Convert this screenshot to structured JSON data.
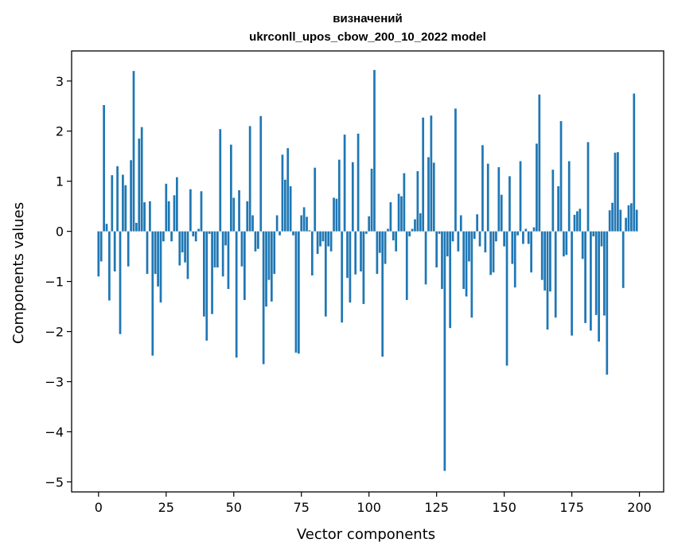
{
  "chart_data": {
    "type": "bar",
    "title_line1": "визначений",
    "title_line2": "ukrconll_upos_cbow_200_10_2022 model",
    "xlabel": "Vector components",
    "ylabel": "Components values",
    "xlim": [
      -9.95,
      208.95
    ],
    "ylim": [
      -5.2,
      3.6
    ],
    "xticks": [
      0,
      25,
      50,
      75,
      100,
      125,
      150,
      175,
      200
    ],
    "yticks": [
      -5,
      -4,
      -3,
      -2,
      -1,
      0,
      1,
      2,
      3
    ],
    "ytick_labels": [
      "−5",
      "−4",
      "−3",
      "−2",
      "−1",
      "0",
      "1",
      "2",
      "3"
    ],
    "bar_color": "#1f77b4",
    "grid": false,
    "x": [
      0,
      1,
      2,
      3,
      4,
      5,
      6,
      7,
      8,
      9,
      10,
      11,
      12,
      13,
      14,
      15,
      16,
      17,
      18,
      19,
      20,
      21,
      22,
      23,
      24,
      25,
      26,
      27,
      28,
      29,
      30,
      31,
      32,
      33,
      34,
      35,
      36,
      37,
      38,
      39,
      40,
      41,
      42,
      43,
      44,
      45,
      46,
      47,
      48,
      49,
      50,
      51,
      52,
      53,
      54,
      55,
      56,
      57,
      58,
      59,
      60,
      61,
      62,
      63,
      64,
      65,
      66,
      67,
      68,
      69,
      70,
      71,
      72,
      73,
      74,
      75,
      76,
      77,
      78,
      79,
      80,
      81,
      82,
      83,
      84,
      85,
      86,
      87,
      88,
      89,
      90,
      91,
      92,
      93,
      94,
      95,
      96,
      97,
      98,
      99,
      100,
      101,
      102,
      103,
      104,
      105,
      106,
      107,
      108,
      109,
      110,
      111,
      112,
      113,
      114,
      115,
      116,
      117,
      118,
      119,
      120,
      121,
      122,
      123,
      124,
      125,
      126,
      127,
      128,
      129,
      130,
      131,
      132,
      133,
      134,
      135,
      136,
      137,
      138,
      139,
      140,
      141,
      142,
      143,
      144,
      145,
      146,
      147,
      148,
      149,
      150,
      151,
      152,
      153,
      154,
      155,
      156,
      157,
      158,
      159,
      160,
      161,
      162,
      163,
      164,
      165,
      166,
      167,
      168,
      169,
      170,
      171,
      172,
      173,
      174,
      175,
      176,
      177,
      178,
      179,
      180,
      181,
      182,
      183,
      184,
      185,
      186,
      187,
      188,
      189,
      190,
      191,
      192,
      193,
      194,
      195,
      196,
      197,
      198,
      199
    ],
    "values": [
      -0.9,
      -0.6,
      2.52,
      0.15,
      -1.38,
      1.12,
      -0.8,
      1.3,
      -2.05,
      1.13,
      0.92,
      -0.7,
      1.42,
      3.2,
      0.17,
      1.85,
      2.08,
      0.58,
      -0.85,
      0.6,
      -2.48,
      -0.85,
      -1.1,
      -1.42,
      -0.2,
      0.95,
      0.6,
      -0.2,
      0.72,
      1.08,
      -0.68,
      -0.42,
      -0.62,
      -0.95,
      0.84,
      -0.1,
      -0.2,
      0.05,
      0.8,
      -1.7,
      -2.18,
      -0.05,
      -1.65,
      -0.72,
      -0.72,
      2.04,
      -0.9,
      -0.28,
      -1.15,
      1.73,
      0.67,
      -2.52,
      0.82,
      -0.7,
      -1.37,
      0.6,
      2.1,
      0.32,
      -0.4,
      -0.35,
      2.3,
      -2.65,
      -1.5,
      -0.97,
      -1.4,
      -0.85,
      0.32,
      -0.08,
      1.53,
      1.03,
      1.66,
      0.9,
      -0.08,
      -2.42,
      -2.44,
      0.32,
      0.48,
      0.29,
      0.02,
      -0.88,
      1.27,
      -0.45,
      -0.3,
      -0.2,
      -1.7,
      -0.3,
      -0.4,
      0.67,
      0.65,
      1.43,
      -1.82,
      1.93,
      -0.93,
      -1.42,
      1.38,
      -0.86,
      1.95,
      -0.8,
      -1.45,
      -0.05,
      0.3,
      1.25,
      3.22,
      -0.85,
      -0.43,
      -2.5,
      -0.65,
      0.05,
      0.58,
      -0.18,
      -0.4,
      0.75,
      0.7,
      1.16,
      -1.37,
      -0.1,
      0.05,
      0.24,
      1.2,
      0.36,
      2.27,
      -1.06,
      1.48,
      2.31,
      1.37,
      -0.72,
      -0.05,
      -1.15,
      -4.78,
      -0.5,
      -1.93,
      -0.2,
      2.45,
      -0.4,
      0.32,
      -1.15,
      -1.3,
      -0.6,
      -1.72,
      -0.15,
      0.34,
      -0.3,
      1.72,
      -0.42,
      1.35,
      -0.87,
      -0.82,
      -0.2,
      1.28,
      0.73,
      -0.3,
      -2.68,
      1.1,
      -0.65,
      -1.12,
      -0.08,
      1.4,
      -0.25,
      0.05,
      -0.25,
      -0.82,
      0.08,
      1.75,
      2.73,
      -0.97,
      -1.18,
      -1.96,
      -1.2,
      1.23,
      -1.72,
      0.9,
      2.2,
      -0.5,
      -0.47,
      1.4,
      -2.08,
      0.33,
      0.4,
      0.45,
      -0.55,
      -1.83,
      1.78,
      -1.98,
      -0.1,
      -1.67,
      -2.2,
      -0.3,
      -1.68,
      -2.86,
      0.42,
      0.57,
      1.57,
      1.58,
      0.43,
      -1.13,
      0.27,
      0.52,
      0.56,
      2.75,
      0.43
    ]
  }
}
